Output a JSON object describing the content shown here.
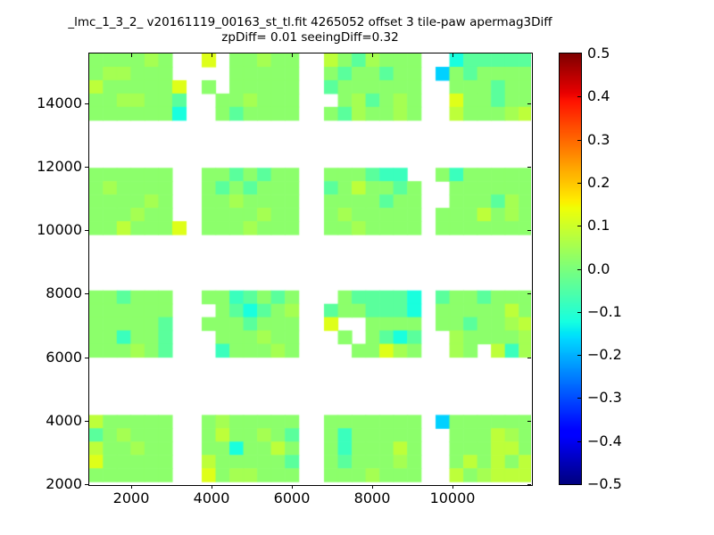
{
  "chart_data": {
    "type": "heatmap",
    "title_line1": "_lmc_1_3_2_ v20161119_00163_st_tl.fit 4265052 offset 3 tile-paw apermag3Diff",
    "title_line2": "zpDiff= 0.01 seeingDiff=0.32",
    "colormap": "jet",
    "background": "#ffffff",
    "xlim": [
      955,
      11955
    ],
    "ylim": [
      2000,
      15560
    ],
    "xticks": [
      2000,
      4000,
      6000,
      8000,
      10000
    ],
    "yticks": [
      2000,
      4000,
      6000,
      8000,
      10000,
      12000,
      14000
    ],
    "colorbar": {
      "vmin": -0.5,
      "vmax": 0.5,
      "tick_values": [
        0.5,
        0.4,
        0.3,
        0.2,
        0.1,
        0.0,
        -0.1,
        -0.2,
        -0.3,
        -0.4,
        -0.5
      ],
      "tick_labels": [
        "0.5",
        "0.4",
        "0.3",
        "0.2",
        "0.1",
        "0.0",
        "−0.1",
        "−0.2",
        "−0.3",
        "−0.4",
        "−0.5"
      ]
    },
    "cell_dx": 345,
    "cell_dy": 420,
    "blocks": [
      {
        "x0": 950,
        "ytop": 15560,
        "values": [
          [
            0.02,
            0.02,
            0.02,
            0.02,
            0.05,
            0.02,
            null
          ],
          [
            0.02,
            0.05,
            0.05,
            0.02,
            0.02,
            0.02,
            null
          ],
          [
            0.08,
            0.02,
            0.02,
            0.02,
            0.02,
            0.02,
            0.12
          ],
          [
            0.02,
            0.02,
            0.05,
            0.05,
            0.02,
            0.02,
            -0.04
          ],
          [
            0.02,
            0.02,
            0.02,
            0.02,
            0.02,
            0.02,
            -0.12
          ]
        ]
      },
      {
        "x0": 3755,
        "ytop": 15560,
        "values": [
          [
            0.12,
            null,
            0.02,
            0.02,
            0.05,
            0.02,
            0.02
          ],
          [
            null,
            null,
            0.02,
            0.02,
            0.02,
            0.02,
            0.02
          ],
          [
            0.02,
            null,
            0.02,
            0.02,
            0.02,
            0.02,
            0.02
          ],
          [
            null,
            0.02,
            0.02,
            0.05,
            0.02,
            0.02,
            0.02
          ],
          [
            null,
            0.02,
            -0.04,
            0.02,
            0.02,
            0.02,
            0.02
          ]
        ]
      },
      {
        "x0": 6800,
        "ytop": 15560,
        "values": [
          [
            0.08,
            0.02,
            -0.04,
            0.05,
            0.02,
            0.02,
            0.02
          ],
          [
            0.02,
            -0.04,
            0.02,
            0.02,
            -0.04,
            0.02,
            0.02
          ],
          [
            -0.04,
            0.02,
            0.02,
            0.02,
            0.02,
            0.02,
            0.02
          ],
          [
            null,
            0.02,
            0.05,
            -0.04,
            0.02,
            0.05,
            0.02
          ],
          [
            0.02,
            -0.04,
            0.05,
            0.02,
            0.02,
            0.05,
            0.02
          ]
        ]
      },
      {
        "x0": 9578,
        "ytop": 15560,
        "values": [
          [
            null,
            -0.12,
            -0.04,
            -0.04,
            -0.04,
            -0.04,
            -0.04
          ],
          [
            -0.17,
            0.02,
            -0.04,
            0.02,
            0.02,
            0.02,
            0.02
          ],
          [
            null,
            0.02,
            0.02,
            0.02,
            -0.04,
            0.02,
            0.02
          ],
          [
            null,
            0.12,
            0.02,
            0.02,
            -0.04,
            0.02,
            0.02
          ],
          [
            null,
            0.08,
            0.02,
            0.02,
            0.02,
            0.05,
            0.08
          ]
        ]
      },
      {
        "x0": 950,
        "ytop": 11960,
        "values": [
          [
            0.02,
            0.02,
            0.02,
            0.02,
            0.02,
            0.02,
            null
          ],
          [
            0.02,
            0.05,
            0.02,
            0.02,
            0.02,
            0.02,
            null
          ],
          [
            0.02,
            0.02,
            0.02,
            0.02,
            0.05,
            0.02,
            null
          ],
          [
            0.02,
            0.02,
            0.02,
            0.05,
            0.02,
            0.02,
            null
          ],
          [
            0.02,
            0.02,
            0.08,
            0.02,
            0.02,
            0.02,
            0.12
          ]
        ]
      },
      {
        "x0": 3755,
        "ytop": 11960,
        "values": [
          [
            0.02,
            0.02,
            -0.04,
            0.02,
            -0.04,
            0.02,
            0.02
          ],
          [
            0.02,
            -0.04,
            0.02,
            -0.04,
            0.02,
            0.02,
            0.02
          ],
          [
            0.02,
            0.02,
            0.05,
            0.02,
            0.02,
            0.02,
            0.02
          ],
          [
            0.02,
            0.02,
            0.02,
            0.02,
            0.05,
            0.02,
            0.02
          ],
          [
            0.02,
            0.02,
            0.02,
            0.05,
            0.02,
            0.02,
            0.02
          ]
        ]
      },
      {
        "x0": 6800,
        "ytop": 11960,
        "values": [
          [
            0.02,
            0.02,
            0.02,
            -0.04,
            -0.08,
            -0.08,
            null
          ],
          [
            -0.04,
            0.02,
            0.08,
            0.02,
            0.02,
            -0.04,
            0.02
          ],
          [
            0.02,
            0.02,
            0.02,
            0.02,
            -0.04,
            0.02,
            0.02
          ],
          [
            0.02,
            0.05,
            0.02,
            0.02,
            0.02,
            0.02,
            0.02
          ],
          [
            0.02,
            0.02,
            0.05,
            0.02,
            0.02,
            0.02,
            0.02
          ]
        ]
      },
      {
        "x0": 9578,
        "ytop": 11960,
        "values": [
          [
            0.02,
            -0.08,
            0.02,
            0.02,
            0.02,
            0.02,
            0.02
          ],
          [
            null,
            0.02,
            0.02,
            0.02,
            0.02,
            0.02,
            0.02
          ],
          [
            null,
            0.02,
            0.02,
            0.02,
            -0.04,
            0.05,
            0.02
          ],
          [
            0.02,
            0.02,
            0.02,
            0.08,
            0.02,
            0.05,
            0.02
          ],
          [
            0.02,
            0.02,
            0.02,
            0.02,
            0.02,
            0.02,
            0.02
          ]
        ]
      },
      {
        "x0": 950,
        "ytop": 8100,
        "values": [
          [
            0.02,
            0.02,
            -0.04,
            0.02,
            0.02,
            0.02,
            null
          ],
          [
            0.02,
            0.02,
            0.02,
            0.02,
            0.02,
            0.02,
            null
          ],
          [
            0.02,
            0.02,
            0.02,
            0.02,
            0.02,
            -0.04,
            null
          ],
          [
            0.02,
            0.02,
            -0.08,
            0.02,
            0.02,
            -0.04,
            null
          ],
          [
            0.02,
            0.02,
            0.02,
            0.05,
            0.02,
            -0.04,
            null
          ]
        ]
      },
      {
        "x0": 3755,
        "ytop": 8100,
        "values": [
          [
            0.02,
            0.02,
            -0.08,
            -0.04,
            0.02,
            -0.04,
            0.02
          ],
          [
            null,
            0.02,
            -0.04,
            -0.12,
            -0.04,
            0.02,
            0.05
          ],
          [
            0.02,
            0.02,
            0.02,
            -0.04,
            0.02,
            0.02,
            0.02
          ],
          [
            null,
            0.02,
            0.02,
            0.02,
            0.05,
            0.02,
            0.02
          ],
          [
            null,
            -0.08,
            0.02,
            0.02,
            0.02,
            0.05,
            0.02
          ]
        ]
      },
      {
        "x0": 6800,
        "ytop": 8100,
        "values": [
          [
            null,
            0.02,
            -0.04,
            -0.04,
            -0.04,
            -0.04,
            -0.12
          ],
          [
            -0.04,
            0.02,
            0.02,
            -0.04,
            -0.04,
            -0.04,
            -0.12
          ],
          [
            0.12,
            null,
            null,
            0.02,
            0.02,
            0.02,
            0.02
          ],
          [
            null,
            0.02,
            null,
            0.02,
            -0.04,
            -0.12,
            -0.04
          ],
          [
            null,
            null,
            0.02,
            0.02,
            0.12,
            0.05,
            0.02
          ]
        ]
      },
      {
        "x0": 9578,
        "ytop": 8100,
        "values": [
          [
            -0.04,
            0.02,
            0.02,
            -0.04,
            0.02,
            0.02,
            0.02
          ],
          [
            0.02,
            0.02,
            0.02,
            0.02,
            0.02,
            0.08,
            0.02
          ],
          [
            0.02,
            0.02,
            -0.04,
            0.02,
            0.02,
            0.05,
            0.08
          ],
          [
            null,
            0.05,
            0.02,
            0.02,
            0.02,
            0.02,
            0.05
          ],
          [
            null,
            0.05,
            0.02,
            null,
            0.08,
            -0.08,
            0.05
          ]
        ]
      },
      {
        "x0": 950,
        "ytop": 4180,
        "values": [
          [
            0.08,
            0.02,
            0.02,
            0.02,
            0.02,
            0.02,
            null
          ],
          [
            -0.04,
            0.02,
            0.05,
            0.02,
            0.02,
            0.02,
            null
          ],
          [
            0.08,
            0.02,
            0.02,
            0.05,
            0.02,
            0.02,
            null
          ],
          [
            0.12,
            0.02,
            0.02,
            0.02,
            0.02,
            0.02,
            null
          ],
          [
            0.02,
            0.02,
            0.02,
            0.02,
            0.02,
            0.02,
            null
          ]
        ]
      },
      {
        "x0": 3755,
        "ytop": 4180,
        "values": [
          [
            0.02,
            0.05,
            0.02,
            0.02,
            0.02,
            0.02,
            0.02
          ],
          [
            0.02,
            0.08,
            0.02,
            0.02,
            0.05,
            0.02,
            -0.04
          ],
          [
            0.02,
            0.02,
            -0.12,
            0.02,
            0.02,
            0.08,
            0.02
          ],
          [
            0.08,
            0.02,
            0.02,
            0.02,
            0.02,
            0.02,
            -0.04
          ],
          [
            0.12,
            0.02,
            0.05,
            0.05,
            0.02,
            0.02,
            0.02
          ]
        ]
      },
      {
        "x0": 6800,
        "ytop": 4180,
        "values": [
          [
            0.02,
            0.02,
            0.02,
            0.02,
            0.02,
            0.02,
            0.02
          ],
          [
            0.02,
            -0.08,
            0.02,
            0.02,
            0.02,
            0.02,
            0.02
          ],
          [
            0.02,
            -0.08,
            0.02,
            0.02,
            0.02,
            0.08,
            0.02
          ],
          [
            0.02,
            -0.04,
            0.02,
            0.02,
            0.02,
            0.05,
            0.02
          ],
          [
            0.02,
            0.02,
            0.02,
            0.05,
            0.02,
            0.02,
            0.02
          ]
        ]
      },
      {
        "x0": 9578,
        "ytop": 4180,
        "values": [
          [
            -0.17,
            0.02,
            0.02,
            0.02,
            0.02,
            0.02,
            0.02
          ],
          [
            null,
            0.02,
            0.02,
            0.02,
            0.08,
            0.05,
            0.02
          ],
          [
            null,
            0.02,
            0.02,
            0.02,
            0.08,
            0.08,
            0.02
          ],
          [
            null,
            0.02,
            0.08,
            0.02,
            0.08,
            0.02,
            0.08
          ],
          [
            null,
            0.08,
            0.02,
            0.05,
            0.08,
            0.08,
            0.08
          ]
        ]
      }
    ]
  }
}
